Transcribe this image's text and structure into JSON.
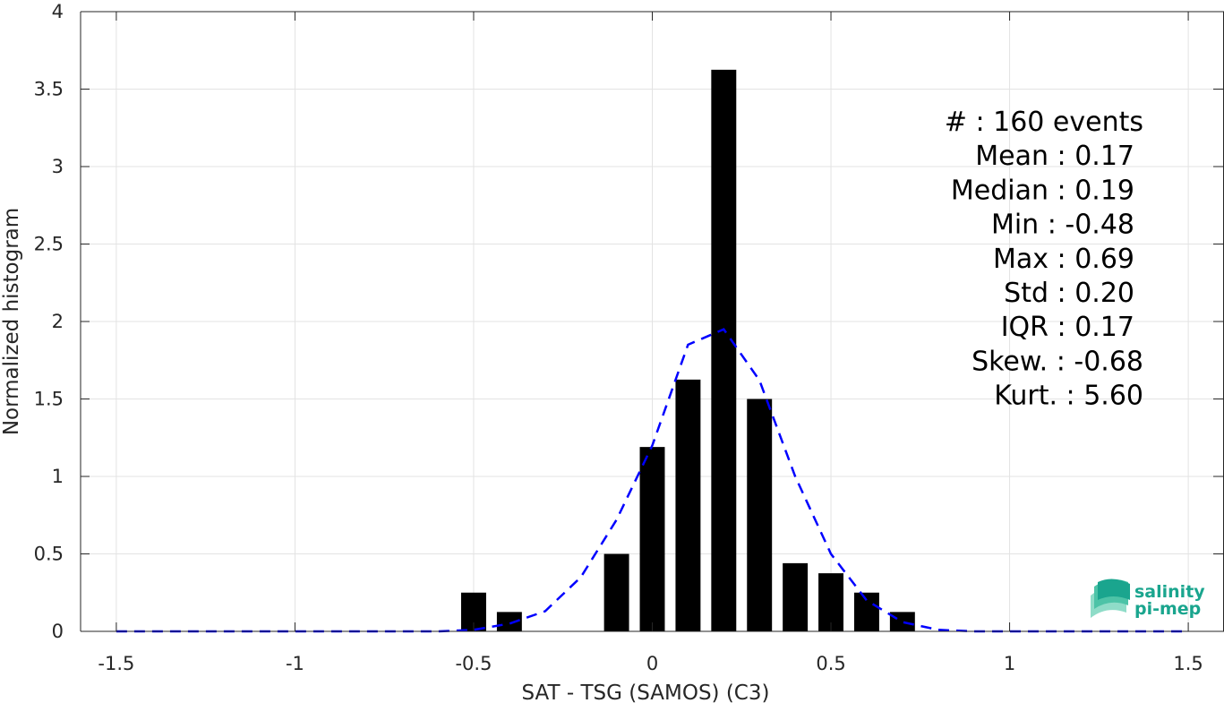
{
  "chart_data": {
    "type": "bar",
    "xlabel": "SAT - TSG (SAMOS) (C3)",
    "ylabel": "Normalized histogram",
    "xlim": [
      -1.6,
      1.6
    ],
    "ylim": [
      0,
      4
    ],
    "x_ticks": [
      -1.5,
      -1,
      -0.5,
      0,
      0.5,
      1,
      1.5
    ],
    "x_tick_labels": [
      "-1.5",
      "-1",
      "-0.5",
      "0",
      "0.5",
      "1",
      "1.5"
    ],
    "y_ticks": [
      0,
      0.5,
      1,
      1.5,
      2,
      2.5,
      3,
      3.5,
      4
    ],
    "y_tick_labels": [
      "0",
      "0.5",
      "1",
      "1.5",
      "2",
      "2.5",
      "3",
      "3.5",
      "4"
    ],
    "grid": true,
    "bar_color": "#000000",
    "bin_width": 0.1,
    "bars": {
      "x": [
        -0.5,
        -0.4,
        -0.1,
        0.0,
        0.1,
        0.2,
        0.3,
        0.4,
        0.5,
        0.6,
        0.7
      ],
      "values": [
        0.25,
        0.125,
        0.5,
        1.19,
        1.625,
        3.625,
        1.5,
        0.44,
        0.375,
        0.25,
        0.125
      ]
    },
    "fit_curve": {
      "color": "#0000ff",
      "style": "dashed",
      "x": [
        -1.5,
        -1.4,
        -1.3,
        -1.2,
        -1.1,
        -1.0,
        -0.9,
        -0.8,
        -0.7,
        -0.6,
        -0.5,
        -0.4,
        -0.3,
        -0.2,
        -0.1,
        0.0,
        0.1,
        0.2,
        0.3,
        0.4,
        0.5,
        0.6,
        0.7,
        0.8,
        0.9,
        1.0,
        1.1,
        1.2,
        1.3,
        1.4,
        1.5
      ],
      "values": [
        0,
        0,
        0,
        0,
        0,
        0,
        0,
        0,
        0,
        0,
        0.01,
        0.05,
        0.13,
        0.35,
        0.72,
        1.2,
        1.85,
        1.95,
        1.62,
        1.0,
        0.5,
        0.2,
        0.06,
        0.01,
        0,
        0,
        0,
        0,
        0,
        0,
        0
      ]
    },
    "stats_lines": [
      "#  : 160 events",
      "Mean : 0.17",
      "Median : 0.19",
      "Min : -0.48",
      "Max : 0.69",
      "Std : 0.20",
      "IQR : 0.17",
      "Skew. : -0.68",
      "Kurt. : 5.60"
    ]
  },
  "logo": {
    "line1": "salinity",
    "line2": "pi-mep",
    "colors": [
      "#1aa58e",
      "#4dc3a7",
      "#8fdcc8"
    ]
  }
}
